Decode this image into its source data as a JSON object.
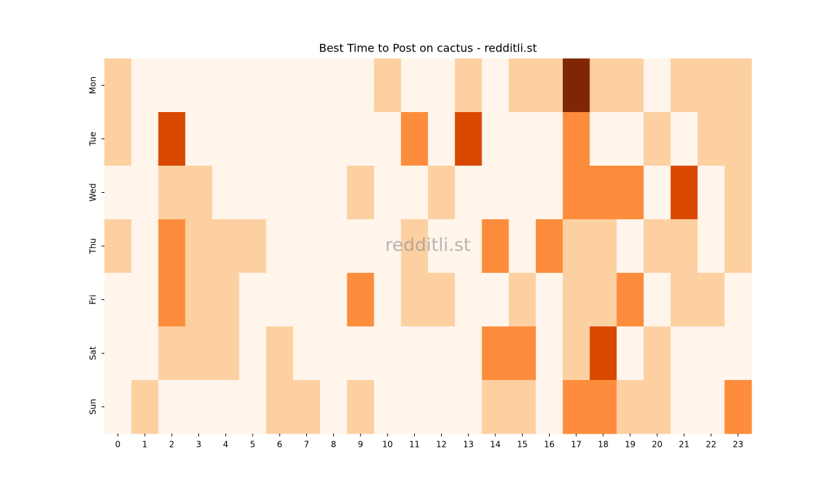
{
  "chart_data": {
    "type": "heatmap",
    "title": "Best Time to Post on cactus - redditli.st",
    "watermark": "redditli.st",
    "x": [
      0,
      1,
      2,
      3,
      4,
      5,
      6,
      7,
      8,
      9,
      10,
      11,
      12,
      13,
      14,
      15,
      16,
      17,
      18,
      19,
      20,
      21,
      22,
      23
    ],
    "y": [
      "Mon",
      "Tue",
      "Wed",
      "Thu",
      "Fri",
      "Sat",
      "Sun"
    ],
    "values": [
      [
        1,
        0,
        0,
        0,
        0,
        0,
        0,
        0,
        0,
        0,
        1,
        0,
        0,
        1,
        0,
        1,
        1,
        4,
        1,
        1,
        0,
        1,
        1,
        1
      ],
      [
        1,
        0,
        3,
        0,
        0,
        0,
        0,
        0,
        0,
        0,
        0,
        2,
        0,
        3,
        0,
        0,
        0,
        2,
        0,
        0,
        1,
        0,
        1,
        1
      ],
      [
        0,
        0,
        1,
        1,
        0,
        0,
        0,
        0,
        0,
        1,
        0,
        0,
        1,
        0,
        0,
        0,
        0,
        2,
        2,
        2,
        0,
        3,
        0,
        1
      ],
      [
        1,
        0,
        2,
        1,
        1,
        1,
        0,
        0,
        0,
        0,
        0,
        1,
        0,
        0,
        2,
        0,
        2,
        1,
        1,
        0,
        1,
        1,
        0,
        1
      ],
      [
        0,
        0,
        2,
        1,
        1,
        0,
        0,
        0,
        0,
        2,
        0,
        1,
        1,
        0,
        0,
        1,
        0,
        1,
        1,
        2,
        0,
        1,
        1,
        0
      ],
      [
        0,
        0,
        1,
        1,
        1,
        0,
        1,
        0,
        0,
        0,
        0,
        0,
        0,
        0,
        2,
        2,
        0,
        1,
        3,
        0,
        1,
        0,
        0,
        0
      ],
      [
        0,
        1,
        0,
        0,
        0,
        0,
        1,
        1,
        0,
        1,
        0,
        0,
        0,
        0,
        1,
        1,
        0,
        2,
        2,
        1,
        1,
        0,
        0,
        2
      ]
    ],
    "colors": [
      "#fff5eb",
      "#fdd0a2",
      "#fd8d3c",
      "#d94801",
      "#7f2704"
    ]
  }
}
